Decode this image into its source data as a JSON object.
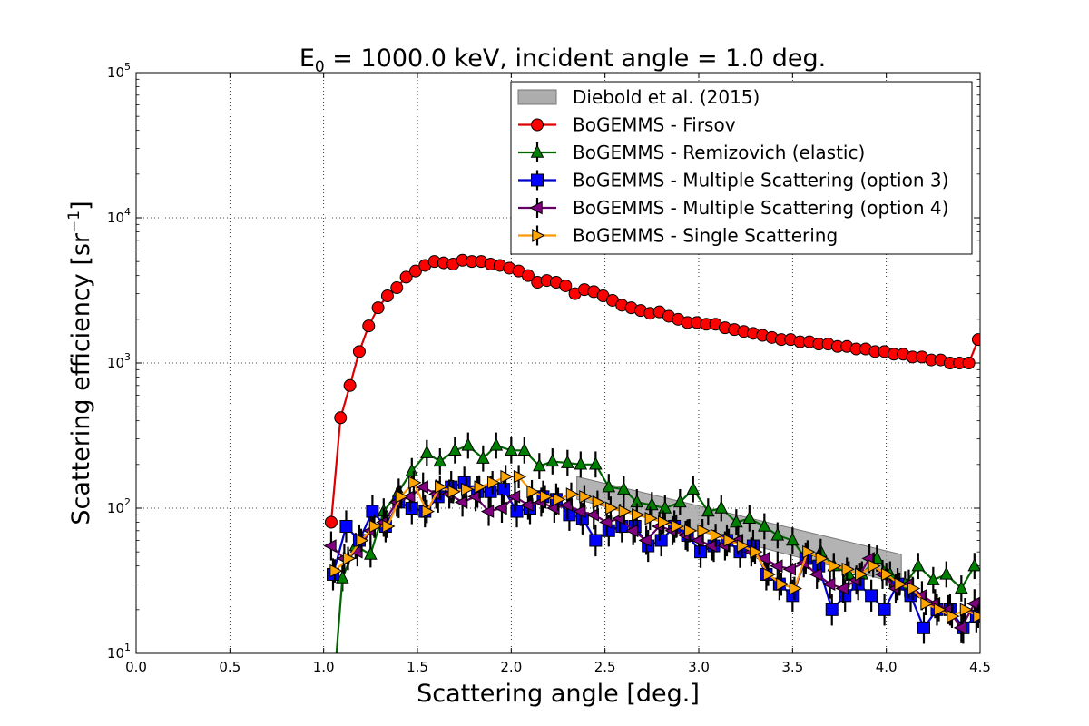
{
  "chart_data": {
    "type": "line",
    "title": {
      "prefix": "E",
      "subscript": "0",
      "suffix": " = 1000.0 keV, incident angle = 1.0 deg."
    },
    "xlabel": "Scattering angle [deg.]",
    "ylabel": {
      "prefix": "Scattering efficiency [sr",
      "superscript": "−1",
      "suffix": "]"
    },
    "xlim": [
      0.0,
      4.5
    ],
    "ylim_log10": [
      1,
      5
    ],
    "yscale": "log",
    "grid": true,
    "legend_position": "top-right",
    "x_ticks": [
      "0.0",
      "0.5",
      "1.0",
      "1.5",
      "2.0",
      "2.5",
      "3.0",
      "3.5",
      "4.0",
      "4.5"
    ],
    "y_ticks": [
      {
        "base": "10",
        "exp": "1"
      },
      {
        "base": "10",
        "exp": "2"
      },
      {
        "base": "10",
        "exp": "3"
      },
      {
        "base": "10",
        "exp": "4"
      },
      {
        "base": "10",
        "exp": "5"
      }
    ],
    "band": {
      "name": "Diebold et al. (2015)",
      "color": "#999999",
      "x": [
        2.35,
        4.08
      ],
      "upper": [
        165,
        48
      ],
      "lower": [
        115,
        30
      ]
    },
    "series": [
      {
        "name": "BoGEMMS - Firsov",
        "color": "#ff0000",
        "line": "#dd0000",
        "marker": "circle",
        "err": 0,
        "x": [
          1.04,
          1.09,
          1.14,
          1.19,
          1.24,
          1.29,
          1.34,
          1.39,
          1.44,
          1.49,
          1.54,
          1.59,
          1.64,
          1.69,
          1.74,
          1.79,
          1.84,
          1.89,
          1.94,
          1.99,
          2.04,
          2.09,
          2.14,
          2.19,
          2.24,
          2.29,
          2.34,
          2.39,
          2.44,
          2.49,
          2.54,
          2.59,
          2.64,
          2.69,
          2.74,
          2.79,
          2.84,
          2.89,
          2.94,
          2.99,
          3.04,
          3.09,
          3.14,
          3.19,
          3.24,
          3.29,
          3.34,
          3.39,
          3.44,
          3.49,
          3.54,
          3.59,
          3.64,
          3.69,
          3.74,
          3.79,
          3.84,
          3.89,
          3.94,
          3.99,
          4.04,
          4.09,
          4.14,
          4.19,
          4.24,
          4.29,
          4.34,
          4.39,
          4.44,
          4.49
        ],
        "y": [
          80,
          420,
          700,
          1200,
          1800,
          2400,
          2900,
          3300,
          3900,
          4300,
          4700,
          5000,
          4900,
          4800,
          5100,
          5000,
          5000,
          4800,
          4700,
          4500,
          4300,
          4000,
          3600,
          3700,
          3600,
          3400,
          3000,
          3200,
          3100,
          2900,
          2700,
          2500,
          2400,
          2300,
          2200,
          2250,
          2100,
          2000,
          1900,
          1900,
          1850,
          1850,
          1750,
          1700,
          1650,
          1600,
          1550,
          1500,
          1450,
          1450,
          1400,
          1400,
          1350,
          1350,
          1300,
          1300,
          1250,
          1250,
          1200,
          1200,
          1150,
          1150,
          1100,
          1100,
          1050,
          1050,
          1000,
          1000,
          1000,
          1450
        ]
      },
      {
        "name": "BoGEMMS - Remizovich (elastic)",
        "color": "#008000",
        "line": "#006400",
        "marker": "triangle-up",
        "err": 0.09,
        "x": [
          1.05,
          1.1,
          1.17,
          1.25,
          1.32,
          1.4,
          1.47,
          1.55,
          1.62,
          1.7,
          1.77,
          1.85,
          1.92,
          2.0,
          2.07,
          2.15,
          2.22,
          2.3,
          2.37,
          2.45,
          2.52,
          2.6,
          2.67,
          2.75,
          2.82,
          2.9,
          2.97,
          3.05,
          3.12,
          3.2,
          3.27,
          3.35,
          3.42,
          3.5,
          3.57,
          3.65,
          3.72,
          3.8,
          3.87,
          3.95,
          4.02,
          4.1,
          4.17,
          4.25,
          4.32,
          4.4,
          4.47
        ],
        "y": [
          5,
          33,
          55,
          48,
          95,
          130,
          180,
          240,
          210,
          250,
          270,
          220,
          270,
          250,
          250,
          195,
          210,
          205,
          200,
          200,
          140,
          135,
          110,
          105,
          100,
          110,
          135,
          95,
          100,
          80,
          85,
          75,
          65,
          60,
          45,
          50,
          40,
          35,
          35,
          45,
          35,
          30,
          40,
          32,
          35,
          28,
          40
        ]
      },
      {
        "name": "BoGEMMS - Multiple Scattering (option 3)",
        "color": "#0000ff",
        "line": "#0000cc",
        "marker": "square",
        "err": 0.11,
        "x": [
          1.05,
          1.12,
          1.19,
          1.26,
          1.33,
          1.4,
          1.47,
          1.54,
          1.61,
          1.68,
          1.75,
          1.82,
          1.89,
          1.96,
          2.03,
          2.1,
          2.17,
          2.24,
          2.31,
          2.38,
          2.45,
          2.52,
          2.59,
          2.66,
          2.73,
          2.8,
          2.87,
          2.94,
          3.01,
          3.08,
          3.15,
          3.22,
          3.29,
          3.36,
          3.43,
          3.5,
          3.57,
          3.64,
          3.71,
          3.78,
          3.85,
          3.92,
          3.99,
          4.06,
          4.13,
          4.2,
          4.27,
          4.34,
          4.41,
          4.48
        ],
        "y": [
          35,
          75,
          60,
          95,
          75,
          110,
          100,
          95,
          120,
          140,
          150,
          130,
          130,
          135,
          95,
          100,
          120,
          115,
          90,
          85,
          60,
          70,
          75,
          75,
          55,
          60,
          75,
          65,
          50,
          55,
          60,
          50,
          55,
          35,
          30,
          25,
          45,
          40,
          20,
          25,
          30,
          25,
          20,
          30,
          25,
          15,
          20,
          20,
          15,
          18
        ]
      },
      {
        "name": "BoGEMMS - Multiple Scattering (option 4)",
        "color": "#800080",
        "line": "#660066",
        "marker": "triangle-left",
        "err": 0.1,
        "x": [
          1.04,
          1.11,
          1.18,
          1.25,
          1.32,
          1.39,
          1.46,
          1.53,
          1.6,
          1.67,
          1.74,
          1.81,
          1.88,
          1.95,
          2.02,
          2.09,
          2.16,
          2.23,
          2.3,
          2.37,
          2.44,
          2.51,
          2.58,
          2.65,
          2.72,
          2.79,
          2.86,
          2.93,
          3.0,
          3.07,
          3.14,
          3.21,
          3.28,
          3.35,
          3.42,
          3.49,
          3.56,
          3.63,
          3.7,
          3.77,
          3.84,
          3.91,
          3.98,
          4.05,
          4.12,
          4.19,
          4.26,
          4.33,
          4.4,
          4.47
        ],
        "y": [
          55,
          45,
          50,
          70,
          80,
          110,
          120,
          140,
          125,
          125,
          110,
          120,
          95,
          100,
          120,
          105,
          110,
          100,
          105,
          95,
          90,
          80,
          85,
          70,
          60,
          75,
          70,
          65,
          60,
          55,
          55,
          60,
          50,
          45,
          40,
          38,
          42,
          35,
          30,
          28,
          32,
          45,
          35,
          28,
          30,
          25,
          22,
          20,
          15,
          22
        ]
      },
      {
        "name": "BoGEMMS - Single Scattering",
        "color": "#ffa500",
        "line": "#ff9900",
        "marker": "triangle-right",
        "err": 0.08,
        "x": [
          1.06,
          1.13,
          1.2,
          1.27,
          1.34,
          1.41,
          1.48,
          1.55,
          1.62,
          1.69,
          1.76,
          1.83,
          1.9,
          1.97,
          2.04,
          2.11,
          2.18,
          2.25,
          2.32,
          2.39,
          2.46,
          2.53,
          2.6,
          2.67,
          2.74,
          2.81,
          2.88,
          2.95,
          3.02,
          3.09,
          3.16,
          3.23,
          3.3,
          3.37,
          3.44,
          3.51,
          3.58,
          3.65,
          3.72,
          3.79,
          3.86,
          3.93,
          4.0,
          4.07,
          4.14,
          4.21,
          4.28,
          4.35,
          4.42,
          4.49
        ],
        "y": [
          37,
          45,
          60,
          75,
          75,
          120,
          150,
          95,
          140,
          130,
          135,
          140,
          150,
          165,
          165,
          130,
          120,
          115,
          125,
          120,
          110,
          100,
          95,
          90,
          85,
          80,
          75,
          70,
          70,
          65,
          60,
          55,
          50,
          35,
          30,
          28,
          50,
          45,
          40,
          38,
          35,
          40,
          35,
          30,
          28,
          22,
          20,
          18,
          20,
          18
        ]
      }
    ]
  }
}
